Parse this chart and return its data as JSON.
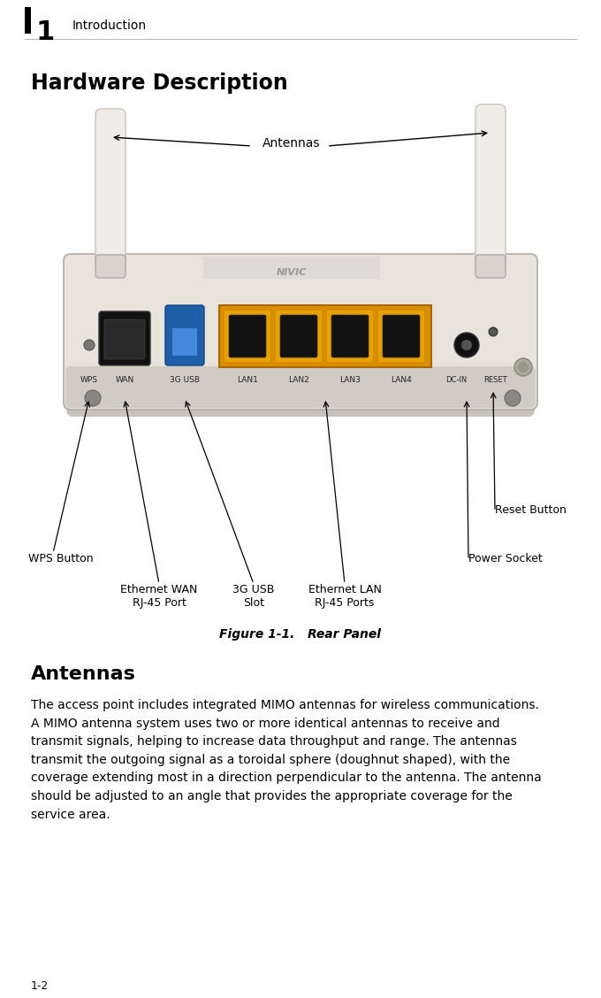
{
  "bg_color": "#ffffff",
  "black": "#000000",
  "header_number": "1",
  "header_text": "Introduction",
  "section_title": "Hardware Description",
  "figure_caption": "Figure 1-1.   Rear Panel",
  "antennas_label": "Antennas",
  "wps_label": "WPS Button",
  "wan_label": "Ethernet WAN\nRJ-45 Port",
  "usb_label": "3G USB\nSlot",
  "lan_label": "Ethernet LAN\nRJ-45 Ports",
  "power_label": "Power Socket",
  "reset_label": "Reset Button",
  "section2_title": "Antennas",
  "body_text": "The access point includes integrated MIMO antennas for wireless communications.\nA MIMO antenna system uses two or more identical antennas to receive and\ntransmit signals, helping to increase data throughput and range. The antennas\ntransmit the outgoing signal as a toroidal sphere (doughnut shaped), with the\ncoverage extending most in a direction perpendicular to the antenna. The antenna\nshould be adjusted to an angle that provides the appropriate coverage for the\nservice area.",
  "page_number": "1-2",
  "router_body_color": "#e8e4dc",
  "router_body_edge": "#b0aca4",
  "router_shadow_color": "#c8c4bc",
  "wan_port_color": "#1a1a1a",
  "usb_port_color": "#1e5faa",
  "usb_inner_color": "#4488dd",
  "lan_outer_color": "#e8a000",
  "lan_inner_color": "#1a1a1a",
  "dc_color": "#1a1a1a",
  "antenna_color": "#f0ede6",
  "antenna_edge": "#c8c4bc",
  "small_button_color": "#888880",
  "port_text_color": "#222222",
  "fig_w": 6.8,
  "fig_h": 11.28,
  "dpi": 100
}
